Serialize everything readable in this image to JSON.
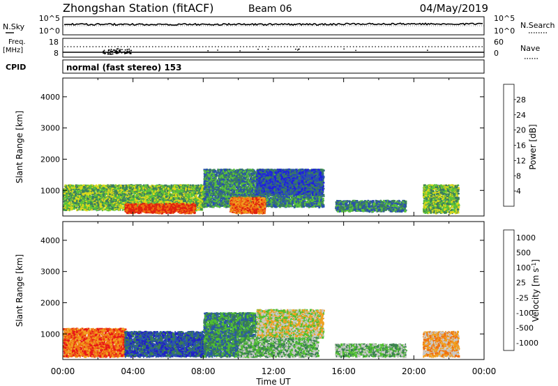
{
  "header": {
    "station": "Zhongshan Station (fitACF)",
    "beam": "Beam 06",
    "date": "04/May/2019"
  },
  "noise_panel": {
    "left_label": "N.Sky",
    "right_label": "N.Search",
    "left_ticks": [
      "10^5",
      "10^0"
    ],
    "right_ticks": [
      "10^5",
      "10^0"
    ]
  },
  "freq_panel": {
    "left_label_line1": "Freq.",
    "left_label_line2": "[MHz]",
    "right_label": "Nave",
    "left_ticks": [
      "18",
      "8"
    ],
    "right_ticks": [
      "60",
      "0"
    ]
  },
  "cpid": {
    "label": "CPID",
    "text": "normal (fast stereo) 153"
  },
  "colors": {
    "power": [
      "#1f1fe0",
      "#2a4fb0",
      "#3b7d5e",
      "#58c23a",
      "#d8d81a",
      "#f0a020",
      "#f07010",
      "#e02010"
    ],
    "velocity": [
      "#e81818",
      "#f07010",
      "#f0a020",
      "#c8c8c8",
      "#50c030",
      "#3a8050",
      "#2a56a8",
      "#2020c8"
    ]
  },
  "chart_data": [
    {
      "type": "heatmap",
      "name": "power",
      "xlabel": "",
      "ylabel": "Slant Range [km]",
      "y_ticks": [
        1000,
        2000,
        3000,
        4000
      ],
      "ylim": [
        180,
        4600
      ],
      "colorbar": {
        "label": "Power [dB]",
        "bounds": [
          0,
          4,
          8,
          12,
          16,
          20,
          24,
          28,
          32
        ],
        "tick_labels": [
          "4",
          "8",
          "12",
          "16",
          "20",
          "24",
          "28"
        ]
      },
      "regions": [
        {
          "t0": 0.0,
          "t1": 8.0,
          "r0": 400,
          "r1": 1200,
          "level": 3
        },
        {
          "t0": 3.5,
          "t1": 7.5,
          "r0": 300,
          "r1": 600,
          "level": 7
        },
        {
          "t0": 8.0,
          "t1": 14.8,
          "r0": 500,
          "r1": 1700,
          "level": 2
        },
        {
          "t0": 9.5,
          "t1": 11.5,
          "r0": 300,
          "r1": 800,
          "level": 6
        },
        {
          "t0": 11.0,
          "t1": 14.8,
          "r0": 900,
          "r1": 1700,
          "level": 1
        },
        {
          "t0": 15.5,
          "t1": 19.5,
          "r0": 350,
          "r1": 700,
          "level": 2
        },
        {
          "t0": 20.5,
          "t1": 22.5,
          "r0": 300,
          "r1": 1200,
          "level": 3
        }
      ]
    },
    {
      "type": "heatmap",
      "name": "velocity",
      "xlabel": "Time UT",
      "ylabel": "Slant Range [km]",
      "x_ticks": [
        "00:00",
        "04:00",
        "08:00",
        "12:00",
        "16:00",
        "20:00",
        "00:00"
      ],
      "xlim": [
        0,
        24
      ],
      "y_ticks": [
        1000,
        2000,
        3000,
        4000
      ],
      "ylim": [
        180,
        4600
      ],
      "colorbar": {
        "label": "Velocity [m s^-1]",
        "tick_labels": [
          "-1000",
          "-500",
          "-100",
          "-25",
          "25",
          "100",
          "500",
          "1000"
        ]
      },
      "regions": [
        {
          "t0": 0.0,
          "t1": 3.5,
          "r0": 300,
          "r1": 1200,
          "level": 1
        },
        {
          "t0": 3.5,
          "t1": 8.0,
          "r0": 300,
          "r1": 1100,
          "level": 6
        },
        {
          "t0": 8.0,
          "t1": 11.0,
          "r0": 300,
          "r1": 1700,
          "level": 5
        },
        {
          "t0": 11.0,
          "t1": 14.8,
          "r0": 900,
          "r1": 1800,
          "level": 3
        },
        {
          "t0": 10.0,
          "t1": 14.5,
          "r0": 300,
          "r1": 900,
          "level": 4
        },
        {
          "t0": 15.5,
          "t1": 19.5,
          "r0": 300,
          "r1": 700,
          "level": 4
        },
        {
          "t0": 20.5,
          "t1": 22.5,
          "r0": 300,
          "r1": 1100,
          "level": 2
        }
      ]
    }
  ]
}
